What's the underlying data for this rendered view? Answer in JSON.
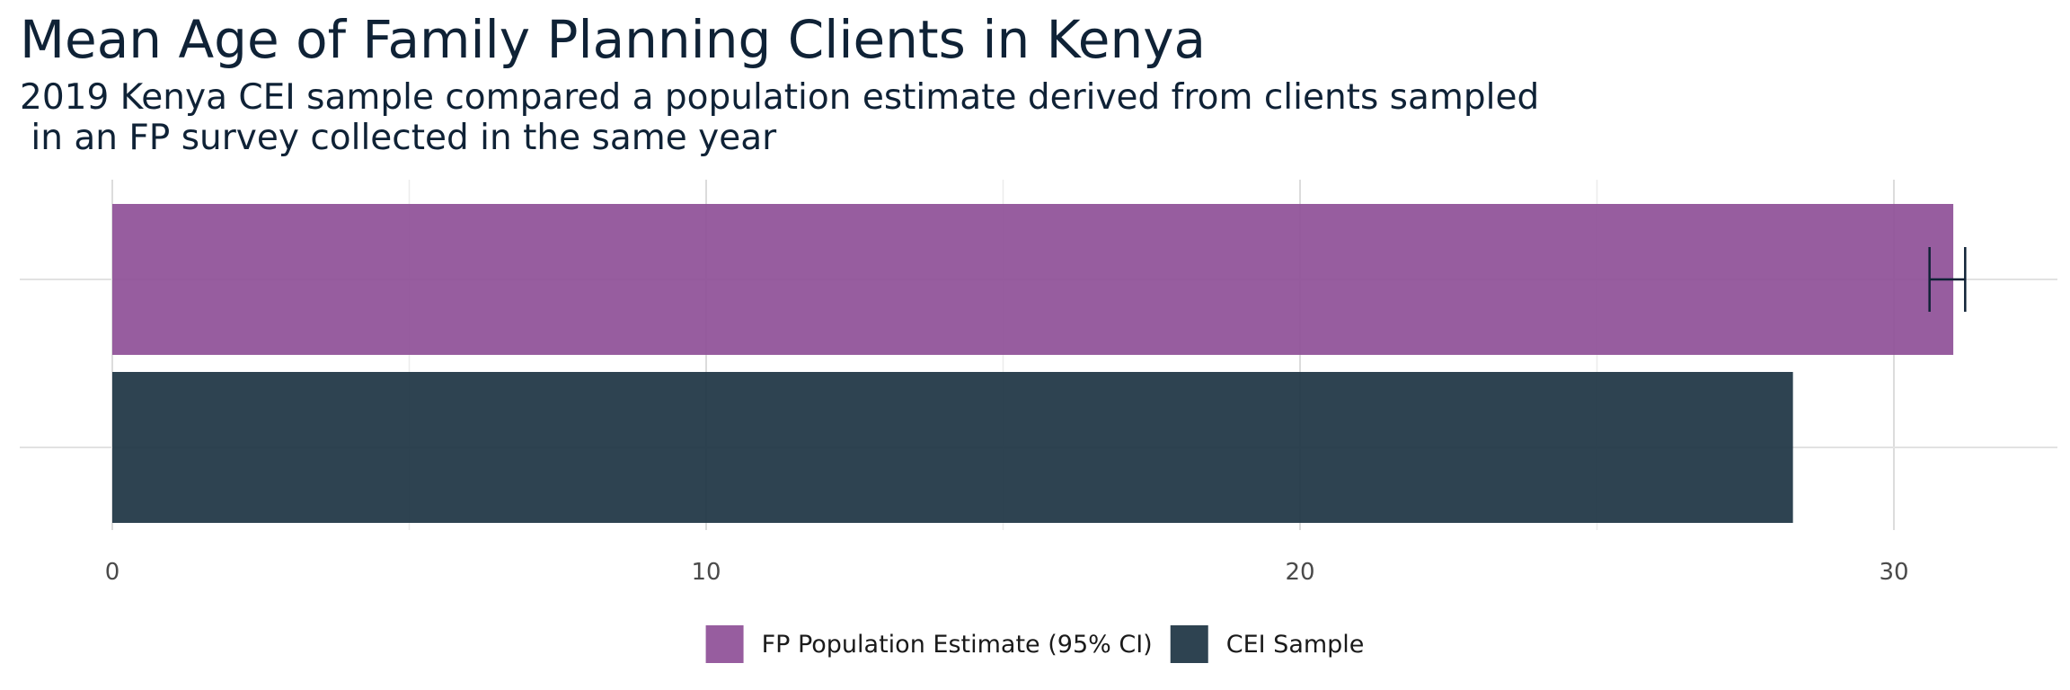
{
  "chart_data": {
    "type": "bar",
    "orientation": "horizontal",
    "title": "Mean Age of Family Planning Clients in Kenya",
    "subtitle_lines": [
      "2019 Kenya CEI sample compared a population estimate derived from clients sampled",
      " in an FP survey collected in the same year"
    ],
    "xlabel": "",
    "ylabel": "",
    "xlim": [
      0,
      32.5
    ],
    "x_ticks": [
      0,
      10,
      20,
      30
    ],
    "x_tick_labels": [
      "0",
      "10",
      "20",
      "30"
    ],
    "grid": true,
    "legend_position": "bottom",
    "series": [
      {
        "name": "FP Population Estimate (95% CI)",
        "value": 31.0,
        "ci": [
          30.6,
          31.2
        ],
        "color": "#8e4f97"
      },
      {
        "name": "CEI Sample",
        "value": 28.3,
        "color": "#1c3342"
      }
    ]
  }
}
